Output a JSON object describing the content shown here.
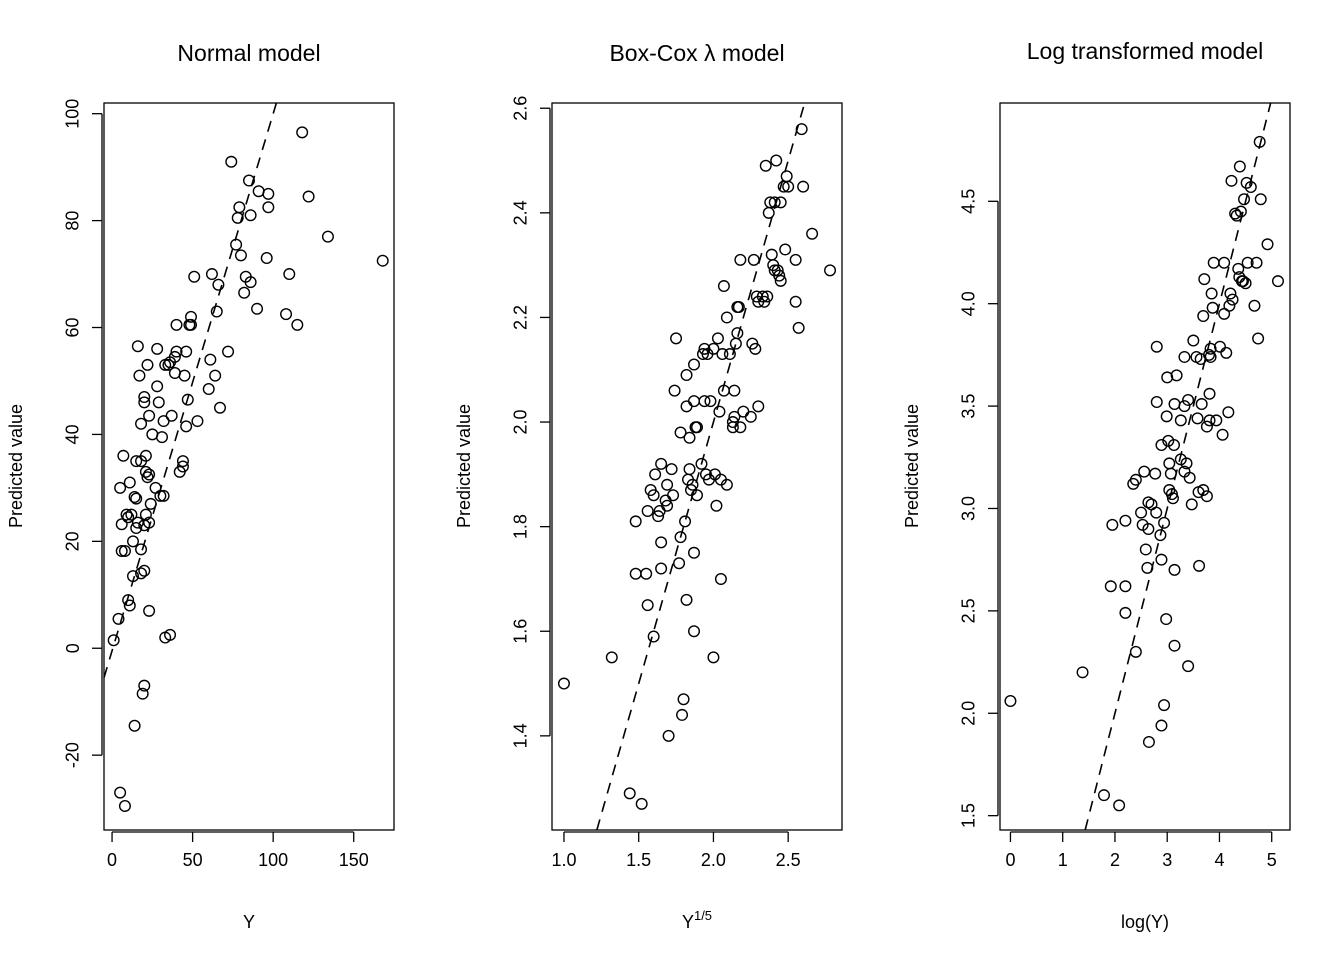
{
  "figure": {
    "background": "#ffffff",
    "point_color": "#000000",
    "ref_line_color": "#000000"
  },
  "chart_data": [
    {
      "type": "scatter",
      "title": "Normal model",
      "xlabel": "Y",
      "ylabel": "Predicted value",
      "xlim": [
        -5,
        175
      ],
      "ylim": [
        -34,
        102
      ],
      "xticks": [
        0,
        50,
        100,
        150
      ],
      "yticks": [
        -20,
        0,
        20,
        40,
        60,
        80,
        100
      ],
      "reference_line": {
        "style": "dashed",
        "points": [
          [
            -5,
            -5.5
          ],
          [
            102,
            102
          ]
        ]
      },
      "grid": false,
      "legend": "none",
      "points": [
        [
          1,
          1.5
        ],
        [
          4,
          5.5
        ],
        [
          6,
          18.2
        ],
        [
          8,
          18.2
        ],
        [
          6,
          23.2
        ],
        [
          9,
          25
        ],
        [
          10,
          24.5
        ],
        [
          11,
          31
        ],
        [
          12,
          25
        ],
        [
          13,
          20
        ],
        [
          14,
          28.3
        ],
        [
          15,
          28
        ],
        [
          15,
          22.5
        ],
        [
          16,
          23.5
        ],
        [
          15,
          35
        ],
        [
          18,
          35
        ],
        [
          17,
          51
        ],
        [
          16,
          56.5
        ],
        [
          18,
          42
        ],
        [
          20,
          47
        ],
        [
          20,
          46
        ],
        [
          23,
          43.5
        ],
        [
          22,
          53
        ],
        [
          25,
          40
        ],
        [
          21,
          36
        ],
        [
          21,
          33
        ],
        [
          23,
          32.5
        ],
        [
          22,
          32
        ],
        [
          24,
          27
        ],
        [
          21,
          25
        ],
        [
          20,
          23
        ],
        [
          23,
          23.5
        ],
        [
          27,
          30
        ],
        [
          28,
          49
        ],
        [
          28,
          56
        ],
        [
          29,
          46
        ],
        [
          31,
          39.5
        ],
        [
          30,
          28.5
        ],
        [
          32,
          28.5
        ],
        [
          32,
          42.5
        ],
        [
          33,
          53
        ],
        [
          35,
          53
        ],
        [
          36,
          53.5
        ],
        [
          37,
          43.5
        ],
        [
          39,
          51.5
        ],
        [
          40,
          60.5
        ],
        [
          40,
          55.5
        ],
        [
          42,
          33
        ],
        [
          44,
          34
        ],
        [
          45,
          51
        ],
        [
          46,
          41.5
        ],
        [
          47,
          46.5
        ],
        [
          46,
          55.5
        ],
        [
          48,
          60.5
        ],
        [
          49,
          60.5
        ],
        [
          49,
          62
        ],
        [
          51,
          69.5
        ],
        [
          53,
          42.5
        ],
        [
          60,
          48.5
        ],
        [
          61,
          54
        ],
        [
          62,
          70
        ],
        [
          64,
          51
        ],
        [
          66,
          68
        ],
        [
          65,
          63
        ],
        [
          67,
          45
        ],
        [
          72,
          55.5
        ],
        [
          74,
          91
        ],
        [
          77,
          75.5
        ],
        [
          78,
          80.5
        ],
        [
          79,
          82.5
        ],
        [
          80,
          73.5
        ],
        [
          82,
          66.5
        ],
        [
          83,
          69.5
        ],
        [
          85,
          87.5
        ],
        [
          86,
          68.5
        ],
        [
          86,
          81
        ],
        [
          90,
          63.5
        ],
        [
          91,
          85.5
        ],
        [
          96,
          73
        ],
        [
          97,
          82.5
        ],
        [
          97,
          85
        ],
        [
          108,
          62.5
        ],
        [
          110,
          70
        ],
        [
          115,
          60.5
        ],
        [
          118,
          96.5
        ],
        [
          122,
          84.5
        ],
        [
          134,
          77
        ],
        [
          168,
          72.5
        ],
        [
          5,
          -27
        ],
        [
          8,
          -29.5
        ],
        [
          10,
          9
        ],
        [
          11,
          8
        ],
        [
          13,
          13.5
        ],
        [
          14,
          -14.5
        ],
        [
          18,
          14
        ],
        [
          18,
          18.5
        ],
        [
          19,
          -8.5
        ],
        [
          20,
          -7
        ],
        [
          20,
          14.5
        ],
        [
          23,
          7
        ],
        [
          33,
          2
        ],
        [
          36,
          2.5
        ],
        [
          39,
          54.5
        ],
        [
          44,
          35
        ],
        [
          5,
          30
        ],
        [
          7,
          36
        ]
      ]
    },
    {
      "type": "scatter",
      "title": "Box-Cox λ model",
      "xlabel": "Y",
      "xlabel_superscript": "1/5",
      "ylabel": "Predicted value",
      "xlim": [
        0.92,
        2.86
      ],
      "ylim": [
        1.22,
        2.61
      ],
      "xticks": [
        1.0,
        1.5,
        2.0,
        2.5
      ],
      "xtick_labels": [
        "1.0",
        "1.5",
        "2.0",
        "2.5"
      ],
      "yticks": [
        1.4,
        1.6,
        1.8,
        2.0,
        2.2,
        2.4,
        2.6
      ],
      "ytick_labels": [
        "1.4",
        "1.6",
        "1.8",
        "2.0",
        "2.2",
        "2.4",
        "2.6"
      ],
      "reference_line": {
        "style": "dashed",
        "points": [
          [
            1.22,
            1.22
          ],
          [
            2.61,
            2.61
          ]
        ]
      },
      "grid": false,
      "legend": "none",
      "points": [
        [
          1.0,
          1.5
        ],
        [
          1.32,
          1.55
        ],
        [
          1.44,
          1.29
        ],
        [
          1.48,
          1.71
        ],
        [
          1.48,
          1.81
        ],
        [
          1.52,
          1.27
        ],
        [
          1.55,
          1.71
        ],
        [
          1.56,
          1.65
        ],
        [
          1.56,
          1.83
        ],
        [
          1.58,
          1.87
        ],
        [
          1.6,
          1.59
        ],
        [
          1.6,
          1.86
        ],
        [
          1.61,
          1.9
        ],
        [
          1.63,
          1.82
        ],
        [
          1.64,
          1.83
        ],
        [
          1.65,
          1.72
        ],
        [
          1.65,
          1.77
        ],
        [
          1.65,
          1.92
        ],
        [
          1.68,
          1.85
        ],
        [
          1.69,
          1.84
        ],
        [
          1.69,
          1.88
        ],
        [
          1.7,
          1.4
        ],
        [
          1.72,
          1.91
        ],
        [
          1.73,
          1.86
        ],
        [
          1.74,
          2.06
        ],
        [
          1.75,
          2.16
        ],
        [
          1.77,
          1.73
        ],
        [
          1.78,
          1.78
        ],
        [
          1.78,
          1.98
        ],
        [
          1.79,
          1.44
        ],
        [
          1.8,
          1.47
        ],
        [
          1.81,
          1.81
        ],
        [
          1.82,
          1.66
        ],
        [
          1.82,
          2.03
        ],
        [
          1.82,
          2.09
        ],
        [
          1.83,
          1.89
        ],
        [
          1.84,
          1.91
        ],
        [
          1.84,
          1.97
        ],
        [
          1.85,
          1.87
        ],
        [
          1.86,
          1.88
        ],
        [
          1.87,
          1.6
        ],
        [
          1.87,
          1.75
        ],
        [
          1.87,
          2.04
        ],
        [
          1.87,
          2.11
        ],
        [
          1.88,
          1.99
        ],
        [
          1.89,
          1.86
        ],
        [
          1.89,
          1.99
        ],
        [
          1.92,
          1.92
        ],
        [
          1.93,
          2.13
        ],
        [
          1.94,
          2.04
        ],
        [
          1.94,
          2.14
        ],
        [
          1.95,
          1.9
        ],
        [
          1.96,
          2.13
        ],
        [
          1.97,
          1.89
        ],
        [
          1.98,
          2.04
        ],
        [
          2.0,
          1.55
        ],
        [
          2.0,
          2.14
        ],
        [
          2.01,
          1.9
        ],
        [
          2.02,
          1.84
        ],
        [
          2.03,
          2.16
        ],
        [
          2.04,
          2.02
        ],
        [
          2.05,
          1.89
        ],
        [
          2.05,
          1.7
        ],
        [
          2.06,
          2.13
        ],
        [
          2.07,
          2.06
        ],
        [
          2.07,
          2.26
        ],
        [
          2.09,
          2.2
        ],
        [
          2.09,
          1.88
        ],
        [
          2.11,
          2.13
        ],
        [
          2.13,
          2.0
        ],
        [
          2.13,
          1.99
        ],
        [
          2.14,
          2.01
        ],
        [
          2.14,
          2.06
        ],
        [
          2.15,
          2.15
        ],
        [
          2.16,
          2.17
        ],
        [
          2.16,
          2.22
        ],
        [
          2.17,
          2.22
        ],
        [
          2.18,
          2.31
        ],
        [
          2.18,
          1.99
        ],
        [
          2.2,
          2.02
        ],
        [
          2.25,
          2.01
        ],
        [
          2.26,
          2.15
        ],
        [
          2.27,
          2.31
        ],
        [
          2.28,
          2.14
        ],
        [
          2.29,
          2.24
        ],
        [
          2.3,
          2.23
        ],
        [
          2.3,
          2.03
        ],
        [
          2.33,
          2.24
        ],
        [
          2.34,
          2.23
        ],
        [
          2.35,
          2.49
        ],
        [
          2.36,
          2.24
        ],
        [
          2.37,
          2.4
        ],
        [
          2.38,
          2.42
        ],
        [
          2.39,
          2.32
        ],
        [
          2.4,
          2.3
        ],
        [
          2.41,
          2.42
        ],
        [
          2.41,
          2.29
        ],
        [
          2.42,
          2.5
        ],
        [
          2.43,
          2.29
        ],
        [
          2.44,
          2.28
        ],
        [
          2.45,
          2.27
        ],
        [
          2.45,
          2.42
        ],
        [
          2.47,
          2.45
        ],
        [
          2.48,
          2.33
        ],
        [
          2.49,
          2.47
        ],
        [
          2.5,
          2.45
        ],
        [
          2.55,
          2.31
        ],
        [
          2.55,
          2.23
        ],
        [
          2.57,
          2.18
        ],
        [
          2.59,
          2.56
        ],
        [
          2.6,
          2.45
        ],
        [
          2.66,
          2.36
        ],
        [
          2.78,
          2.29
        ]
      ]
    },
    {
      "type": "scatter",
      "title": "Log transformed model",
      "xlabel": "log(Y)",
      "ylabel": "Predicted value",
      "xlim": [
        -0.2,
        5.35
      ],
      "ylim": [
        1.43,
        4.98
      ],
      "xticks": [
        0,
        1,
        2,
        3,
        4,
        5
      ],
      "yticks": [
        1.5,
        2.0,
        2.5,
        3.0,
        3.5,
        4.0,
        4.5
      ],
      "ytick_labels": [
        "1.5",
        "2.0",
        "2.5",
        "3.0",
        "3.5",
        "4.0",
        "4.5"
      ],
      "reference_line": {
        "style": "dashed",
        "points": [
          [
            1.43,
            1.43
          ],
          [
            4.98,
            4.98
          ]
        ]
      },
      "grid": false,
      "legend": "none",
      "points": [
        [
          0.0,
          2.06
        ],
        [
          1.38,
          2.2
        ],
        [
          1.79,
          1.6
        ],
        [
          1.92,
          2.62
        ],
        [
          1.95,
          2.92
        ],
        [
          2.08,
          1.55
        ],
        [
          2.2,
          2.49
        ],
        [
          2.2,
          2.62
        ],
        [
          2.2,
          2.94
        ],
        [
          2.35,
          3.12
        ],
        [
          2.4,
          2.3
        ],
        [
          2.4,
          3.14
        ],
        [
          2.5,
          2.98
        ],
        [
          2.53,
          2.92
        ],
        [
          2.56,
          3.18
        ],
        [
          2.59,
          2.8
        ],
        [
          2.62,
          2.71
        ],
        [
          2.64,
          2.9
        ],
        [
          2.64,
          3.03
        ],
        [
          2.65,
          1.86
        ],
        [
          2.7,
          3.02
        ],
        [
          2.77,
          3.17
        ],
        [
          2.79,
          2.98
        ],
        [
          2.8,
          3.52
        ],
        [
          2.8,
          3.79
        ],
        [
          2.87,
          2.87
        ],
        [
          2.89,
          3.31
        ],
        [
          2.89,
          2.75
        ],
        [
          2.89,
          1.94
        ],
        [
          2.94,
          2.04
        ],
        [
          2.94,
          2.93
        ],
        [
          2.98,
          2.46
        ],
        [
          2.99,
          3.45
        ],
        [
          3.0,
          3.64
        ],
        [
          3.02,
          3.33
        ],
        [
          3.04,
          3.22
        ],
        [
          3.04,
          3.09
        ],
        [
          3.07,
          3.17
        ],
        [
          3.09,
          3.07
        ],
        [
          3.11,
          3.05
        ],
        [
          3.13,
          3.31
        ],
        [
          3.14,
          3.51
        ],
        [
          3.14,
          2.7
        ],
        [
          3.14,
          2.33
        ],
        [
          3.18,
          3.65
        ],
        [
          3.26,
          3.24
        ],
        [
          3.26,
          3.43
        ],
        [
          3.33,
          3.74
        ],
        [
          3.33,
          3.5
        ],
        [
          3.33,
          3.18
        ],
        [
          3.37,
          3.22
        ],
        [
          3.4,
          2.23
        ],
        [
          3.4,
          3.53
        ],
        [
          3.43,
          3.15
        ],
        [
          3.47,
          3.02
        ],
        [
          3.5,
          3.82
        ],
        [
          3.56,
          3.74
        ],
        [
          3.58,
          3.44
        ],
        [
          3.6,
          3.08
        ],
        [
          3.61,
          2.72
        ],
        [
          3.64,
          3.73
        ],
        [
          3.66,
          3.51
        ],
        [
          3.69,
          3.94
        ],
        [
          3.69,
          3.09
        ],
        [
          3.71,
          4.12
        ],
        [
          3.76,
          3.06
        ],
        [
          3.76,
          3.4
        ],
        [
          3.8,
          3.75
        ],
        [
          3.81,
          3.43
        ],
        [
          3.81,
          3.56
        ],
        [
          3.83,
          3.78
        ],
        [
          3.83,
          3.74
        ],
        [
          3.85,
          4.05
        ],
        [
          3.87,
          3.98
        ],
        [
          3.89,
          4.2
        ],
        [
          3.94,
          3.43
        ],
        [
          4.01,
          3.79
        ],
        [
          4.06,
          3.36
        ],
        [
          4.09,
          4.2
        ],
        [
          4.09,
          3.95
        ],
        [
          4.13,
          3.76
        ],
        [
          4.17,
          3.47
        ],
        [
          4.19,
          3.99
        ],
        [
          4.21,
          4.05
        ],
        [
          4.23,
          4.6
        ],
        [
          4.25,
          4.02
        ],
        [
          4.3,
          4.44
        ],
        [
          4.33,
          4.43
        ],
        [
          4.36,
          4.17
        ],
        [
          4.38,
          4.13
        ],
        [
          4.39,
          4.67
        ],
        [
          4.41,
          4.45
        ],
        [
          4.43,
          4.11
        ],
        [
          4.45,
          4.11
        ],
        [
          4.47,
          4.51
        ],
        [
          4.5,
          4.1
        ],
        [
          4.52,
          4.59
        ],
        [
          4.54,
          4.2
        ],
        [
          4.6,
          4.57
        ],
        [
          4.67,
          3.99
        ],
        [
          4.71,
          4.2
        ],
        [
          4.74,
          3.83
        ],
        [
          4.77,
          4.79
        ],
        [
          4.79,
          4.51
        ],
        [
          4.92,
          4.29
        ],
        [
          5.12,
          4.11
        ]
      ]
    }
  ]
}
